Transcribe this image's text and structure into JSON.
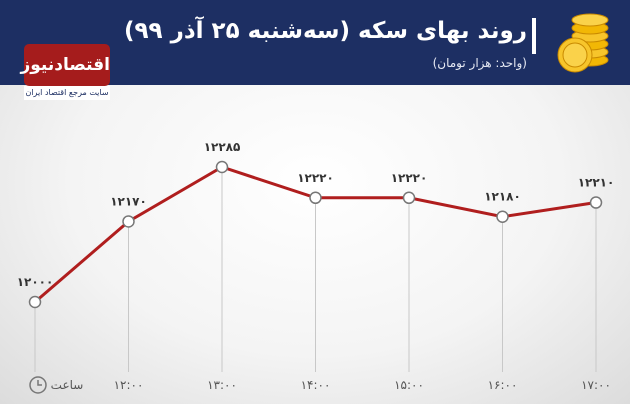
{
  "header": {
    "title": "روند بهای سکه (سه‌شنبه ۲۵ آذر ۹۹)",
    "subtitle": "(واحد: هزار تومان)",
    "logo": "اقتصادنیوز",
    "logo_tagline": "سایت مرجع اقتصاد ایران"
  },
  "chart_data": {
    "type": "line",
    "x_label": "ساعت",
    "categories": [
      null,
      "۱۲:۰۰",
      "۱۳:۰۰",
      "۱۴:۰۰",
      "۱۵:۰۰",
      "۱۶:۰۰",
      "۱۷:۰۰"
    ],
    "values": [
      12000,
      12170,
      12285,
      12220,
      12220,
      12180,
      12210
    ],
    "value_labels": [
      "۱۲۰۰۰",
      "۱۲۱۷۰",
      "۱۲۲۸۵",
      "۱۲۲۲۰",
      "۱۲۲۲۰",
      "۱۲۱۸۰",
      "۱۲۲۱۰"
    ],
    "color": "#b01e1e"
  }
}
